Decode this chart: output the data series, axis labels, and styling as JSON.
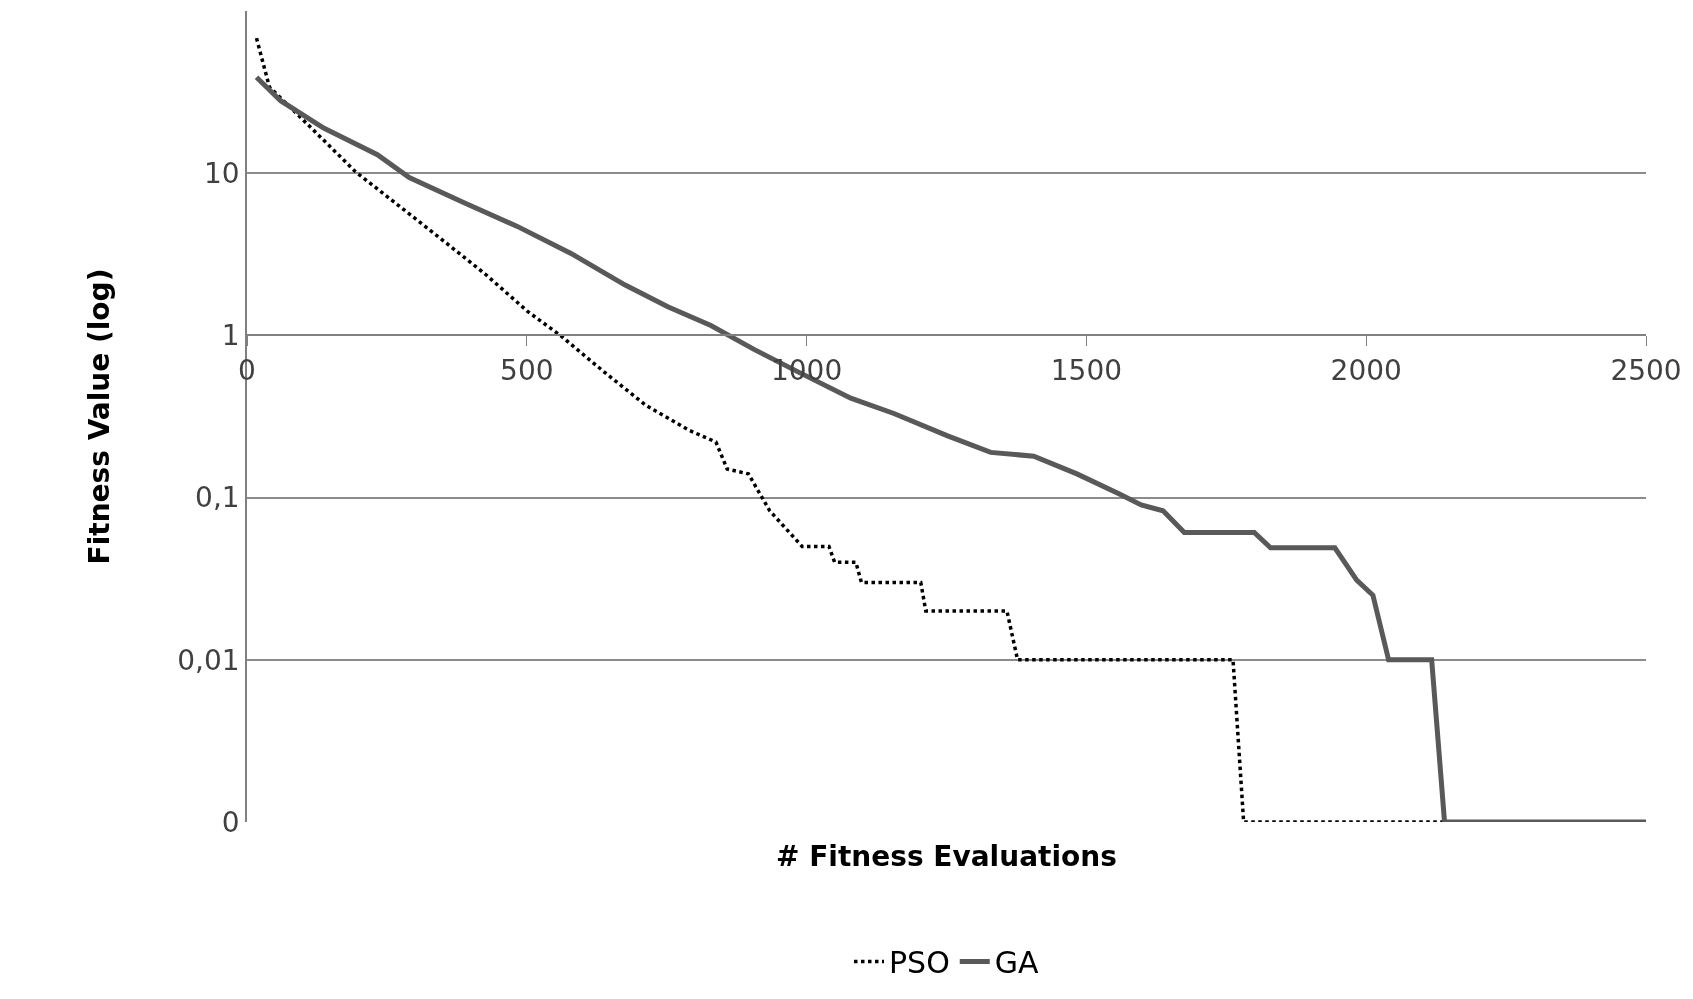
{
  "chart_data": {
    "type": "line",
    "xlabel": "# Fitness Evaluations",
    "ylabel": "Fitness Value (log)",
    "log": "y",
    "grid": "y",
    "legend": "bottom",
    "marker": "none",
    "xlim": [
      0,
      2500
    ],
    "xticks": [
      0,
      500,
      1000,
      1500,
      2000,
      2500
    ],
    "ylim": [
      0.001,
      100
    ],
    "yticks": [
      {
        "value": 0.001,
        "label": "0"
      },
      {
        "value": 0.01,
        "label": "0,01"
      },
      {
        "value": 0.1,
        "label": "0,1"
      },
      1,
      10
    ],
    "series": [
      {
        "name": "PSO",
        "color": "#000000",
        "line_style": "dotted",
        "x": [
          17,
          40,
          117,
          194,
          329,
          425,
          502,
          560,
          637,
          713,
          790,
          838,
          858,
          896,
          934,
          992,
          1040,
          1050,
          1088,
          1098,
          1204,
          1213,
          1358,
          1377,
          1762,
          1781,
          2137
        ],
        "values": [
          68,
          34,
          18.7,
          10.2,
          4.4,
          2.4,
          1.4,
          1,
          0.6,
          0.37,
          0.26,
          0.22,
          0.15,
          0.14,
          0.083,
          0.05,
          0.05,
          0.04,
          0.04,
          0.03,
          0.03,
          0.02,
          0.02,
          0.01,
          0.01,
          0.001,
          0.001
        ]
      },
      {
        "name": "GA",
        "color": "#595959",
        "line_style": "solid",
        "x": [
          17,
          60,
          137,
          233,
          290,
          387,
          483,
          579,
          675,
          752,
          829,
          906,
          983,
          1079,
          1156,
          1252,
          1329,
          1406,
          1483,
          1560,
          1598,
          1637,
          1675,
          1800,
          1829,
          1944,
          1983,
          2012,
          2040,
          2117,
          2140,
          2500
        ],
        "values": [
          39,
          28,
          19,
          13,
          9.4,
          6.6,
          4.7,
          3.2,
          2.05,
          1.5,
          1.15,
          0.82,
          0.6,
          0.41,
          0.33,
          0.24,
          0.19,
          0.18,
          0.14,
          0.105,
          0.09,
          0.083,
          0.061,
          0.061,
          0.049,
          0.049,
          0.031,
          0.025,
          0.01,
          0.01,
          0.001,
          0.001
        ]
      }
    ]
  }
}
